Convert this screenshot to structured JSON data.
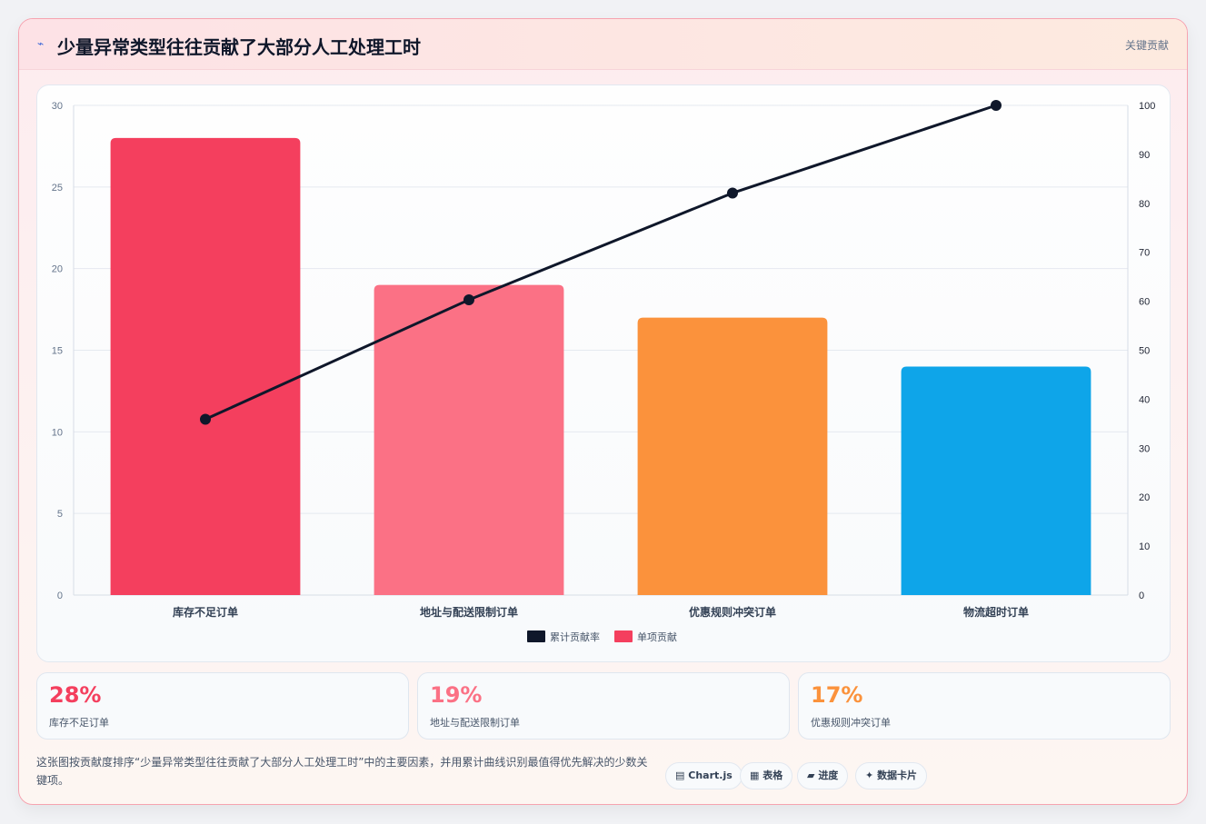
{
  "header": {
    "icon": "lightning-icon",
    "icon_glyph": "⌁",
    "title": "少量异常类型往往贡献了大部分人工处理工时",
    "tag": "关键贡献"
  },
  "chart_data": {
    "type": "bar",
    "categories": [
      "库存不足订单",
      "地址与配送限制订单",
      "优惠规则冲突订单",
      "物流超时订单"
    ],
    "series": [
      {
        "name": "单项贡献",
        "type": "bar",
        "axis": "left",
        "values": [
          28,
          19,
          17,
          14
        ],
        "colors": [
          "#f43f5e",
          "#fb7185",
          "#fb923c",
          "#0ea5e9"
        ]
      },
      {
        "name": "累计贡献率",
        "type": "line",
        "axis": "right",
        "values": [
          35.9,
          60.3,
          82.1,
          100
        ],
        "color": "#0f172a"
      }
    ],
    "y_left": {
      "min": 0,
      "max": 30,
      "ticks": [
        0,
        5,
        10,
        15,
        20,
        25,
        30
      ]
    },
    "y_right": {
      "min": 0,
      "max": 100,
      "ticks": [
        0,
        10,
        20,
        30,
        40,
        50,
        60,
        70,
        80,
        90,
        100
      ]
    },
    "grid": true,
    "legend_position": "bottom"
  },
  "stats": [
    {
      "value": "28%",
      "label": "库存不足订单",
      "color": "#f43f5e"
    },
    {
      "value": "19%",
      "label": "地址与配送限制订单",
      "color": "#fb7185"
    },
    {
      "value": "17%",
      "label": "优惠规则冲突订单",
      "color": "#fb923c"
    }
  ],
  "description": "这张图按贡献度排序“少量异常类型往往贡献了大部分人工处理工时”中的主要因素，并用累计曲线识别最值得优先解决的少数关键项。",
  "pills": [
    {
      "icon": "chart-icon",
      "glyph": "▤",
      "label": "Chart.js"
    },
    {
      "icon": "table-icon",
      "glyph": "▦",
      "label": "表格"
    },
    {
      "icon": "progress-icon",
      "glyph": "▰",
      "label": "进度"
    },
    {
      "icon": "sparkle-icon",
      "glyph": "✦",
      "label": "数据卡片"
    }
  ]
}
